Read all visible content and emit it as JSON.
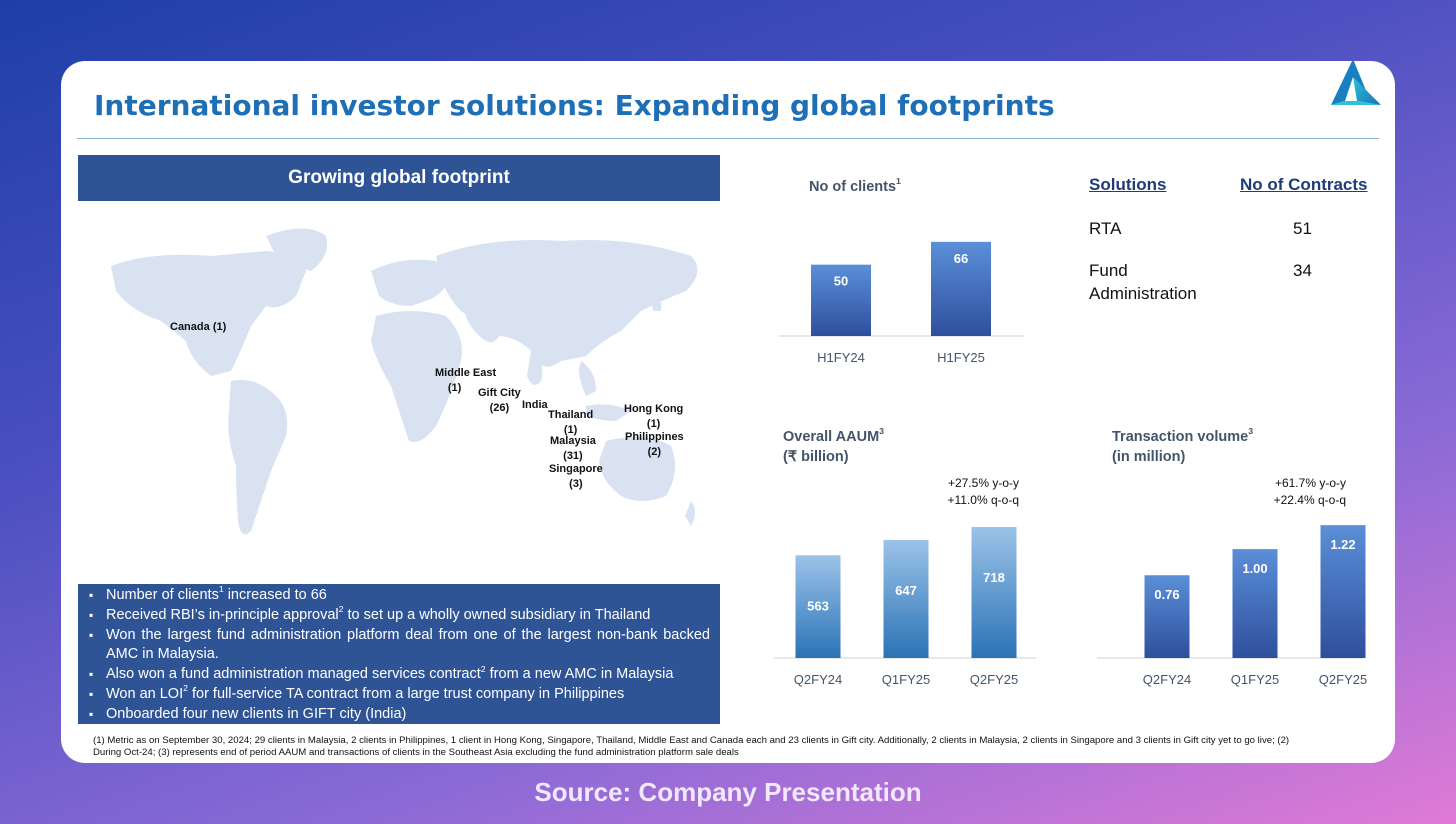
{
  "title": "International investor solutions: Expanding global footprints",
  "panel_header": "Growing global footprint",
  "map_labels": [
    {
      "name": "Canada",
      "count": "(1)"
    },
    {
      "name": "Middle East",
      "count": "(1)"
    },
    {
      "name": "Gift City",
      "count": "(26)"
    },
    {
      "name": "India",
      "count": ""
    },
    {
      "name": "Thailand",
      "count": "(1)"
    },
    {
      "name": "Malaysia",
      "count": "(31)"
    },
    {
      "name": "Singapore",
      "count": "(3)"
    },
    {
      "name": "Hong Kong",
      "count": "(1)"
    },
    {
      "name": "Philippines",
      "count": "(2)"
    }
  ],
  "bullets": [
    {
      "text": "Number of clients",
      "sup": "1",
      "rest": " increased to 66"
    },
    {
      "text": "Received RBI’s in-principle approval",
      "sup": "2",
      "rest": " to set up a wholly owned subsidiary in Thailand"
    },
    {
      "text": "Won the largest fund administration platform deal from one of the largest non-bank backed AMC in Malaysia.",
      "sup": "",
      "rest": ""
    },
    {
      "text": "Also won a fund administration managed services contract",
      "sup": "2",
      "rest": " from a new AMC in Malaysia"
    },
    {
      "text": "Won an LOI",
      "sup": "2",
      "rest": " for full-service TA contract from a large trust company in Philippines"
    },
    {
      "text": "Onboarded four new clients in GIFT city (India)",
      "sup": "",
      "rest": ""
    }
  ],
  "footnote": "(1) Metric as on September 30, 2024; 29 clients in Malaysia, 2 clients in Philippines, 1 client in Hong Kong, Singapore, Thailand, Middle East and Canada each and 23 clients in Gift city. Additionally, 2 clients in Malaysia, 2 clients in Singapore and 3 clients in Gift city yet to go live; (2) During Oct-24; (3) represents end of period AAUM and transactions of clients in the Southeast Asia excluding the fund administration platform sale deals",
  "table": {
    "headers": [
      "Solutions",
      "No of Contracts"
    ],
    "rows": [
      {
        "solution": "RTA",
        "contracts": "51"
      },
      {
        "solution": "Fund Administration",
        "contracts": "34"
      }
    ]
  },
  "source": "Source: Company Presentation",
  "colors": {
    "title": "#1f6fb7",
    "panel": "#2f5496",
    "bar_dark": "#2e4f9c",
    "bar_light": "#5b8fd8",
    "aaum_dark": "#2a73b6",
    "aaum_light": "#9cc3e8"
  },
  "chart_data": [
    {
      "type": "bar",
      "title": "No of clients",
      "title_sup": "1",
      "categories": [
        "H1FY24",
        "H1FY25"
      ],
      "values": [
        50,
        66
      ],
      "labels": [
        "50",
        "66"
      ],
      "ylim": [
        0,
        75
      ]
    },
    {
      "type": "bar",
      "title": "Overall AAUM",
      "title_sup": "3",
      "subtitle": "(₹ billion)",
      "categories": [
        "Q2FY24",
        "Q1FY25",
        "Q2FY25"
      ],
      "values": [
        563,
        647,
        718
      ],
      "labels": [
        "563",
        "647",
        "718"
      ],
      "annotations": [
        "+27.5% y-o-y",
        "+11.0% q-o-q"
      ],
      "ylim": [
        0,
        800
      ]
    },
    {
      "type": "bar",
      "title": "Transaction volume",
      "title_sup": "3",
      "subtitle": "(in million)",
      "categories": [
        "Q2FY24",
        "Q1FY25",
        "Q2FY25"
      ],
      "values": [
        0.76,
        1.0,
        1.22
      ],
      "labels": [
        "0.76",
        "1.00",
        "1.22"
      ],
      "annotations": [
        "+61.7% y-o-y",
        "+22.4% q-o-q"
      ],
      "ylim": [
        0,
        1.35
      ]
    }
  ]
}
